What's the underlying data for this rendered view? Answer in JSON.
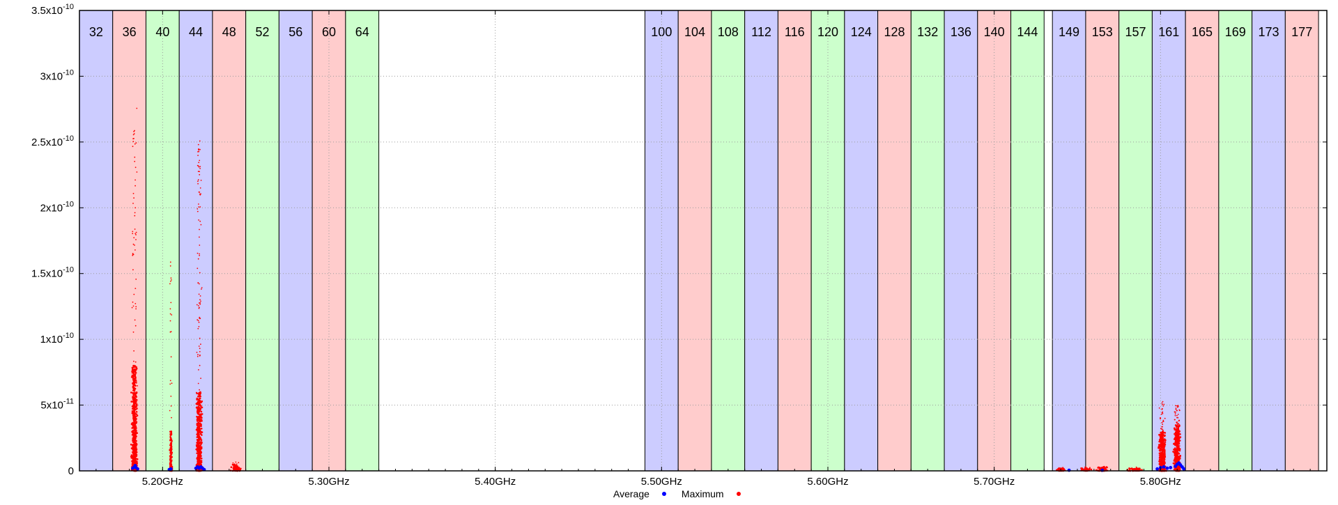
{
  "chart_data": {
    "type": "scatter",
    "x_unit": "GHz",
    "xlim": [
      5.15,
      5.9
    ],
    "ylim": [
      0,
      3.5e-10
    ],
    "grid": true,
    "x_ticks": [
      {
        "value": 5.2,
        "label": "5.20GHz"
      },
      {
        "value": 5.3,
        "label": "5.30GHz"
      },
      {
        "value": 5.4,
        "label": "5.40GHz"
      },
      {
        "value": 5.5,
        "label": "5.50GHz"
      },
      {
        "value": 5.6,
        "label": "5.60GHz"
      },
      {
        "value": 5.7,
        "label": "5.70GHz"
      },
      {
        "value": 5.8,
        "label": "5.80GHz"
      }
    ],
    "y_ticks": [
      {
        "value": 0,
        "base": "0",
        "exp": ""
      },
      {
        "value": 5e-11,
        "base": "5x10",
        "exp": "-11"
      },
      {
        "value": 1e-10,
        "base": "1x10",
        "exp": "-10"
      },
      {
        "value": 1.5e-10,
        "base": "1.5x10",
        "exp": "-10"
      },
      {
        "value": 2e-10,
        "base": "2x10",
        "exp": "-10"
      },
      {
        "value": 2.5e-10,
        "base": "2.5x10",
        "exp": "-10"
      },
      {
        "value": 3e-10,
        "base": "3x10",
        "exp": "-10"
      },
      {
        "value": 3.5e-10,
        "base": "3.5x10",
        "exp": "-10"
      }
    ],
    "channel_colors": [
      "#ccccff",
      "#ffcccc",
      "#ccffcc"
    ],
    "channels": [
      {
        "label": "32",
        "start": 5.15,
        "end": 5.17
      },
      {
        "label": "36",
        "start": 5.17,
        "end": 5.19
      },
      {
        "label": "40",
        "start": 5.19,
        "end": 5.21
      },
      {
        "label": "44",
        "start": 5.21,
        "end": 5.23
      },
      {
        "label": "48",
        "start": 5.23,
        "end": 5.25
      },
      {
        "label": "52",
        "start": 5.25,
        "end": 5.27
      },
      {
        "label": "56",
        "start": 5.27,
        "end": 5.29
      },
      {
        "label": "60",
        "start": 5.29,
        "end": 5.31
      },
      {
        "label": "64",
        "start": 5.31,
        "end": 5.33
      },
      {
        "label": "100",
        "start": 5.49,
        "end": 5.51
      },
      {
        "label": "104",
        "start": 5.51,
        "end": 5.53
      },
      {
        "label": "108",
        "start": 5.53,
        "end": 5.55
      },
      {
        "label": "112",
        "start": 5.55,
        "end": 5.57
      },
      {
        "label": "116",
        "start": 5.57,
        "end": 5.59
      },
      {
        "label": "120",
        "start": 5.59,
        "end": 5.61
      },
      {
        "label": "124",
        "start": 5.61,
        "end": 5.63
      },
      {
        "label": "128",
        "start": 5.63,
        "end": 5.65
      },
      {
        "label": "132",
        "start": 5.65,
        "end": 5.67
      },
      {
        "label": "136",
        "start": 5.67,
        "end": 5.69
      },
      {
        "label": "140",
        "start": 5.69,
        "end": 5.71
      },
      {
        "label": "144",
        "start": 5.71,
        "end": 5.73
      },
      {
        "label": "149",
        "start": 5.735,
        "end": 5.755
      },
      {
        "label": "153",
        "start": 5.755,
        "end": 5.775
      },
      {
        "label": "157",
        "start": 5.775,
        "end": 5.795
      },
      {
        "label": "161",
        "start": 5.795,
        "end": 5.815
      },
      {
        "label": "165",
        "start": 5.815,
        "end": 5.835
      },
      {
        "label": "169",
        "start": 5.835,
        "end": 5.855
      },
      {
        "label": "173",
        "start": 5.855,
        "end": 5.875
      },
      {
        "label": "177",
        "start": 5.875,
        "end": 5.895
      }
    ],
    "legend_position": "bottom-center",
    "series": [
      {
        "name": "Average",
        "color": "#0000ff",
        "points": [
          [
            5.182,
            2e-12
          ],
          [
            5.183,
            3e-12
          ],
          [
            5.1835,
            4e-12
          ],
          [
            5.184,
            2.5e-12
          ],
          [
            5.185,
            1.5e-12
          ],
          [
            5.204,
            1e-12
          ],
          [
            5.205,
            1.5e-12
          ],
          [
            5.22,
            2e-12
          ],
          [
            5.221,
            3e-12
          ],
          [
            5.222,
            2e-12
          ],
          [
            5.223,
            3e-12
          ],
          [
            5.224,
            2e-12
          ],
          [
            5.225,
            1e-12
          ],
          [
            5.745,
            5e-13
          ],
          [
            5.765,
            5e-13
          ],
          [
            5.798,
            1.5e-12
          ],
          [
            5.8,
            2.5e-12
          ],
          [
            5.802,
            3e-12
          ],
          [
            5.804,
            2e-12
          ],
          [
            5.806,
            2.5e-12
          ],
          [
            5.809,
            3.5e-12
          ],
          [
            5.81,
            5e-12
          ],
          [
            5.811,
            6e-12
          ],
          [
            5.812,
            4.5e-12
          ],
          [
            5.813,
            3e-12
          ],
          [
            5.814,
            1.5e-12
          ]
        ]
      },
      {
        "name": "Maximum",
        "color": "#ff0000",
        "clusters": [
          {
            "center": 5.183,
            "spread": 0.002,
            "count": 700,
            "dense_max": 8e-11,
            "sparse_max": 2.8e-10,
            "sparse_frac": 0.1
          },
          {
            "center": 5.205,
            "spread": 0.0008,
            "count": 140,
            "dense_max": 3e-11,
            "sparse_max": 1.6e-10,
            "sparse_frac": 0.2
          },
          {
            "center": 5.222,
            "spread": 0.002,
            "count": 600,
            "dense_max": 6e-11,
            "sparse_max": 2.55e-10,
            "sparse_frac": 0.15
          },
          {
            "center": 5.244,
            "spread": 0.003,
            "count": 90,
            "dense_max": 5e-12,
            "sparse_max": 7e-12,
            "sparse_frac": 0.1
          },
          {
            "center": 5.74,
            "spread": 0.003,
            "count": 50,
            "dense_max": 2e-12,
            "sparse_max": 3e-12,
            "sparse_frac": 0.1
          },
          {
            "center": 5.755,
            "spread": 0.004,
            "count": 50,
            "dense_max": 2e-12,
            "sparse_max": 3e-12,
            "sparse_frac": 0.1
          },
          {
            "center": 5.765,
            "spread": 0.004,
            "count": 70,
            "dense_max": 3e-12,
            "sparse_max": 4e-12,
            "sparse_frac": 0.1
          },
          {
            "center": 5.785,
            "spread": 0.006,
            "count": 60,
            "dense_max": 2e-12,
            "sparse_max": 3e-12,
            "sparse_frac": 0.1
          },
          {
            "center": 5.801,
            "spread": 0.0025,
            "count": 450,
            "dense_max": 3e-11,
            "sparse_max": 5.5e-11,
            "sparse_frac": 0.15
          },
          {
            "center": 5.81,
            "spread": 0.0025,
            "count": 450,
            "dense_max": 3.5e-11,
            "sparse_max": 5e-11,
            "sparse_frac": 0.15
          }
        ]
      }
    ]
  }
}
